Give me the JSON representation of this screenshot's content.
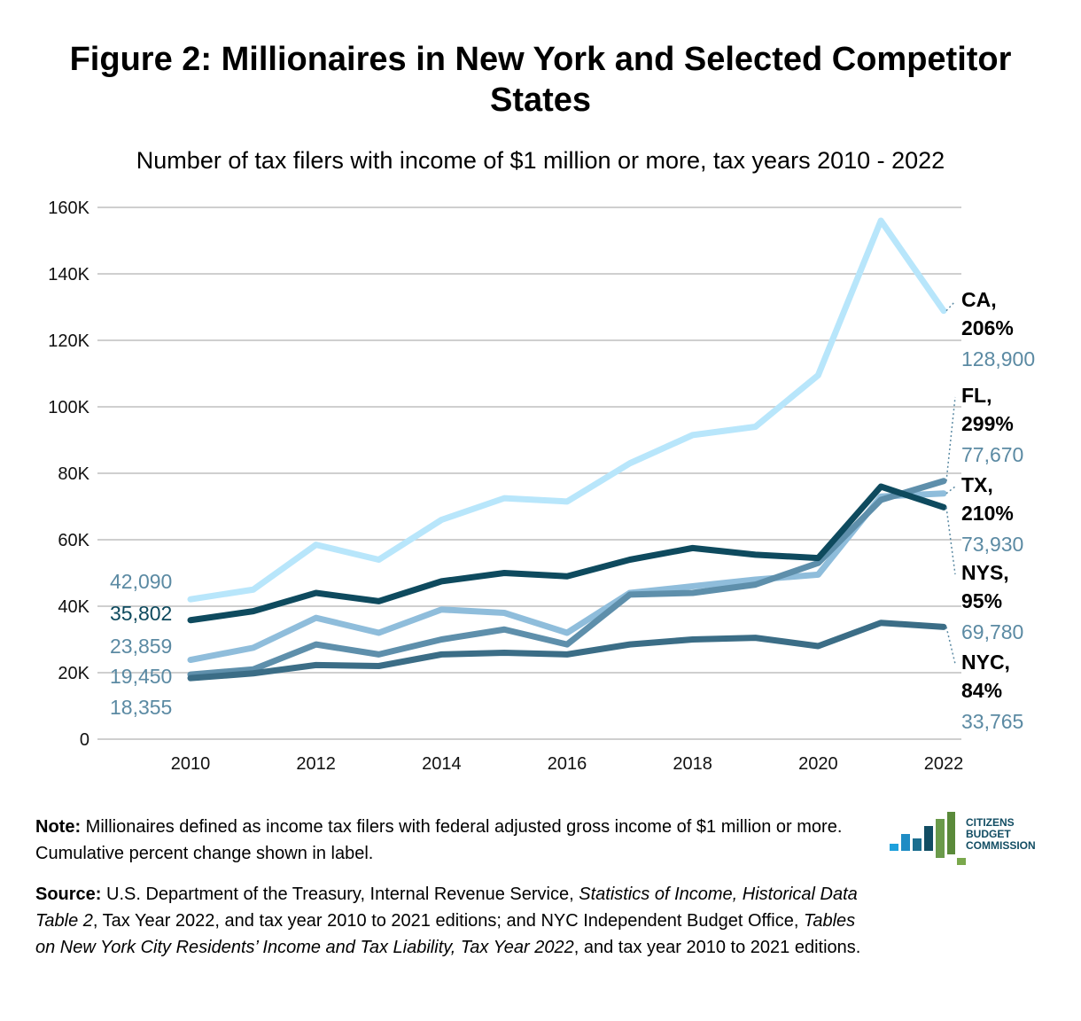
{
  "title": "Figure 2: Millionaires in New York and Selected Competitor States",
  "subtitle": "Number of tax filers with income of $1 million or more, tax years 2010 - 2022",
  "chart_data": {
    "type": "line",
    "x": [
      2010,
      2011,
      2012,
      2013,
      2014,
      2015,
      2016,
      2017,
      2018,
      2019,
      2020,
      2021,
      2022
    ],
    "ylim": [
      0,
      160000
    ],
    "yticks": [
      0,
      20000,
      40000,
      60000,
      80000,
      100000,
      120000,
      140000,
      160000
    ],
    "ytick_labels": [
      "0",
      "20K",
      "40K",
      "60K",
      "80K",
      "100K",
      "120K",
      "140K",
      "160K"
    ],
    "xticks": [
      2010,
      2012,
      2014,
      2016,
      2018,
      2020,
      2022
    ],
    "xtick_labels": [
      "2010",
      "2012",
      "2014",
      "2016",
      "2018",
      "2020",
      "2022"
    ],
    "grid": true,
    "series": [
      {
        "name": "CA",
        "change": "206%",
        "start_label": "42,090",
        "end_label": "128,900",
        "color": "#b8e6fb",
        "values": [
          42090,
          45000,
          58500,
          54000,
          66000,
          72500,
          71500,
          83000,
          91500,
          94000,
          109500,
          156000,
          128900
        ]
      },
      {
        "name": "FL",
        "change": "299%",
        "start_label": "19,450",
        "end_label": "77,670",
        "color": "#5e8fab",
        "values": [
          19450,
          21000,
          28500,
          25500,
          30000,
          33000,
          28500,
          43500,
          44000,
          46500,
          53000,
          72000,
          77670
        ]
      },
      {
        "name": "TX",
        "change": "210%",
        "start_label": "23,859",
        "end_label": "73,930",
        "color": "#8fbddb",
        "values": [
          23859,
          27500,
          36500,
          32000,
          39000,
          38000,
          32000,
          44000,
          46000,
          48000,
          49500,
          73000,
          73930
        ]
      },
      {
        "name": "NYS",
        "change": "95%",
        "start_label": "35,802",
        "end_label": "69,780",
        "color": "#0e4a5e",
        "values": [
          35802,
          38500,
          44000,
          41500,
          47500,
          50000,
          49000,
          54000,
          57500,
          55500,
          54500,
          76000,
          69780
        ]
      },
      {
        "name": "NYC",
        "change": "84%",
        "start_label": "18,355",
        "end_label": "33,765",
        "color": "#3b6d86",
        "values": [
          18355,
          19800,
          22300,
          22000,
          25500,
          26000,
          25500,
          28500,
          30000,
          30500,
          28000,
          35000,
          33765
        ]
      }
    ]
  },
  "notes": {
    "note_label": "Note:",
    "note_text": " Millionaires defined as income tax filers with federal adjusted gross income of $1 million or more. Cumulative percent change shown in label.",
    "source_label": "Source:",
    "source_1": " U.S. Department of the Treasury, Internal Revenue Service, ",
    "source_italic_1": "Statistics of Income, Historical Data Table 2",
    "source_2": ", Tax Year 2022, and tax year 2010 to 2021 editions; and NYC Independent Budget Office, ",
    "source_italic_2": "Tables on New York City Residents’ Income and Tax Liability, Tax Year 2022",
    "source_3": ", and tax year 2010 to 2021 editions."
  },
  "logo": {
    "line1": "CITIZENS",
    "line2": "BUDGET",
    "line3": "COMMISSION",
    "colors": [
      "#1ea0dc",
      "#1f8cc4",
      "#1b6e8f",
      "#124d63",
      "#6a9a4a",
      "#5a8a3a",
      "#7aa84c"
    ]
  }
}
